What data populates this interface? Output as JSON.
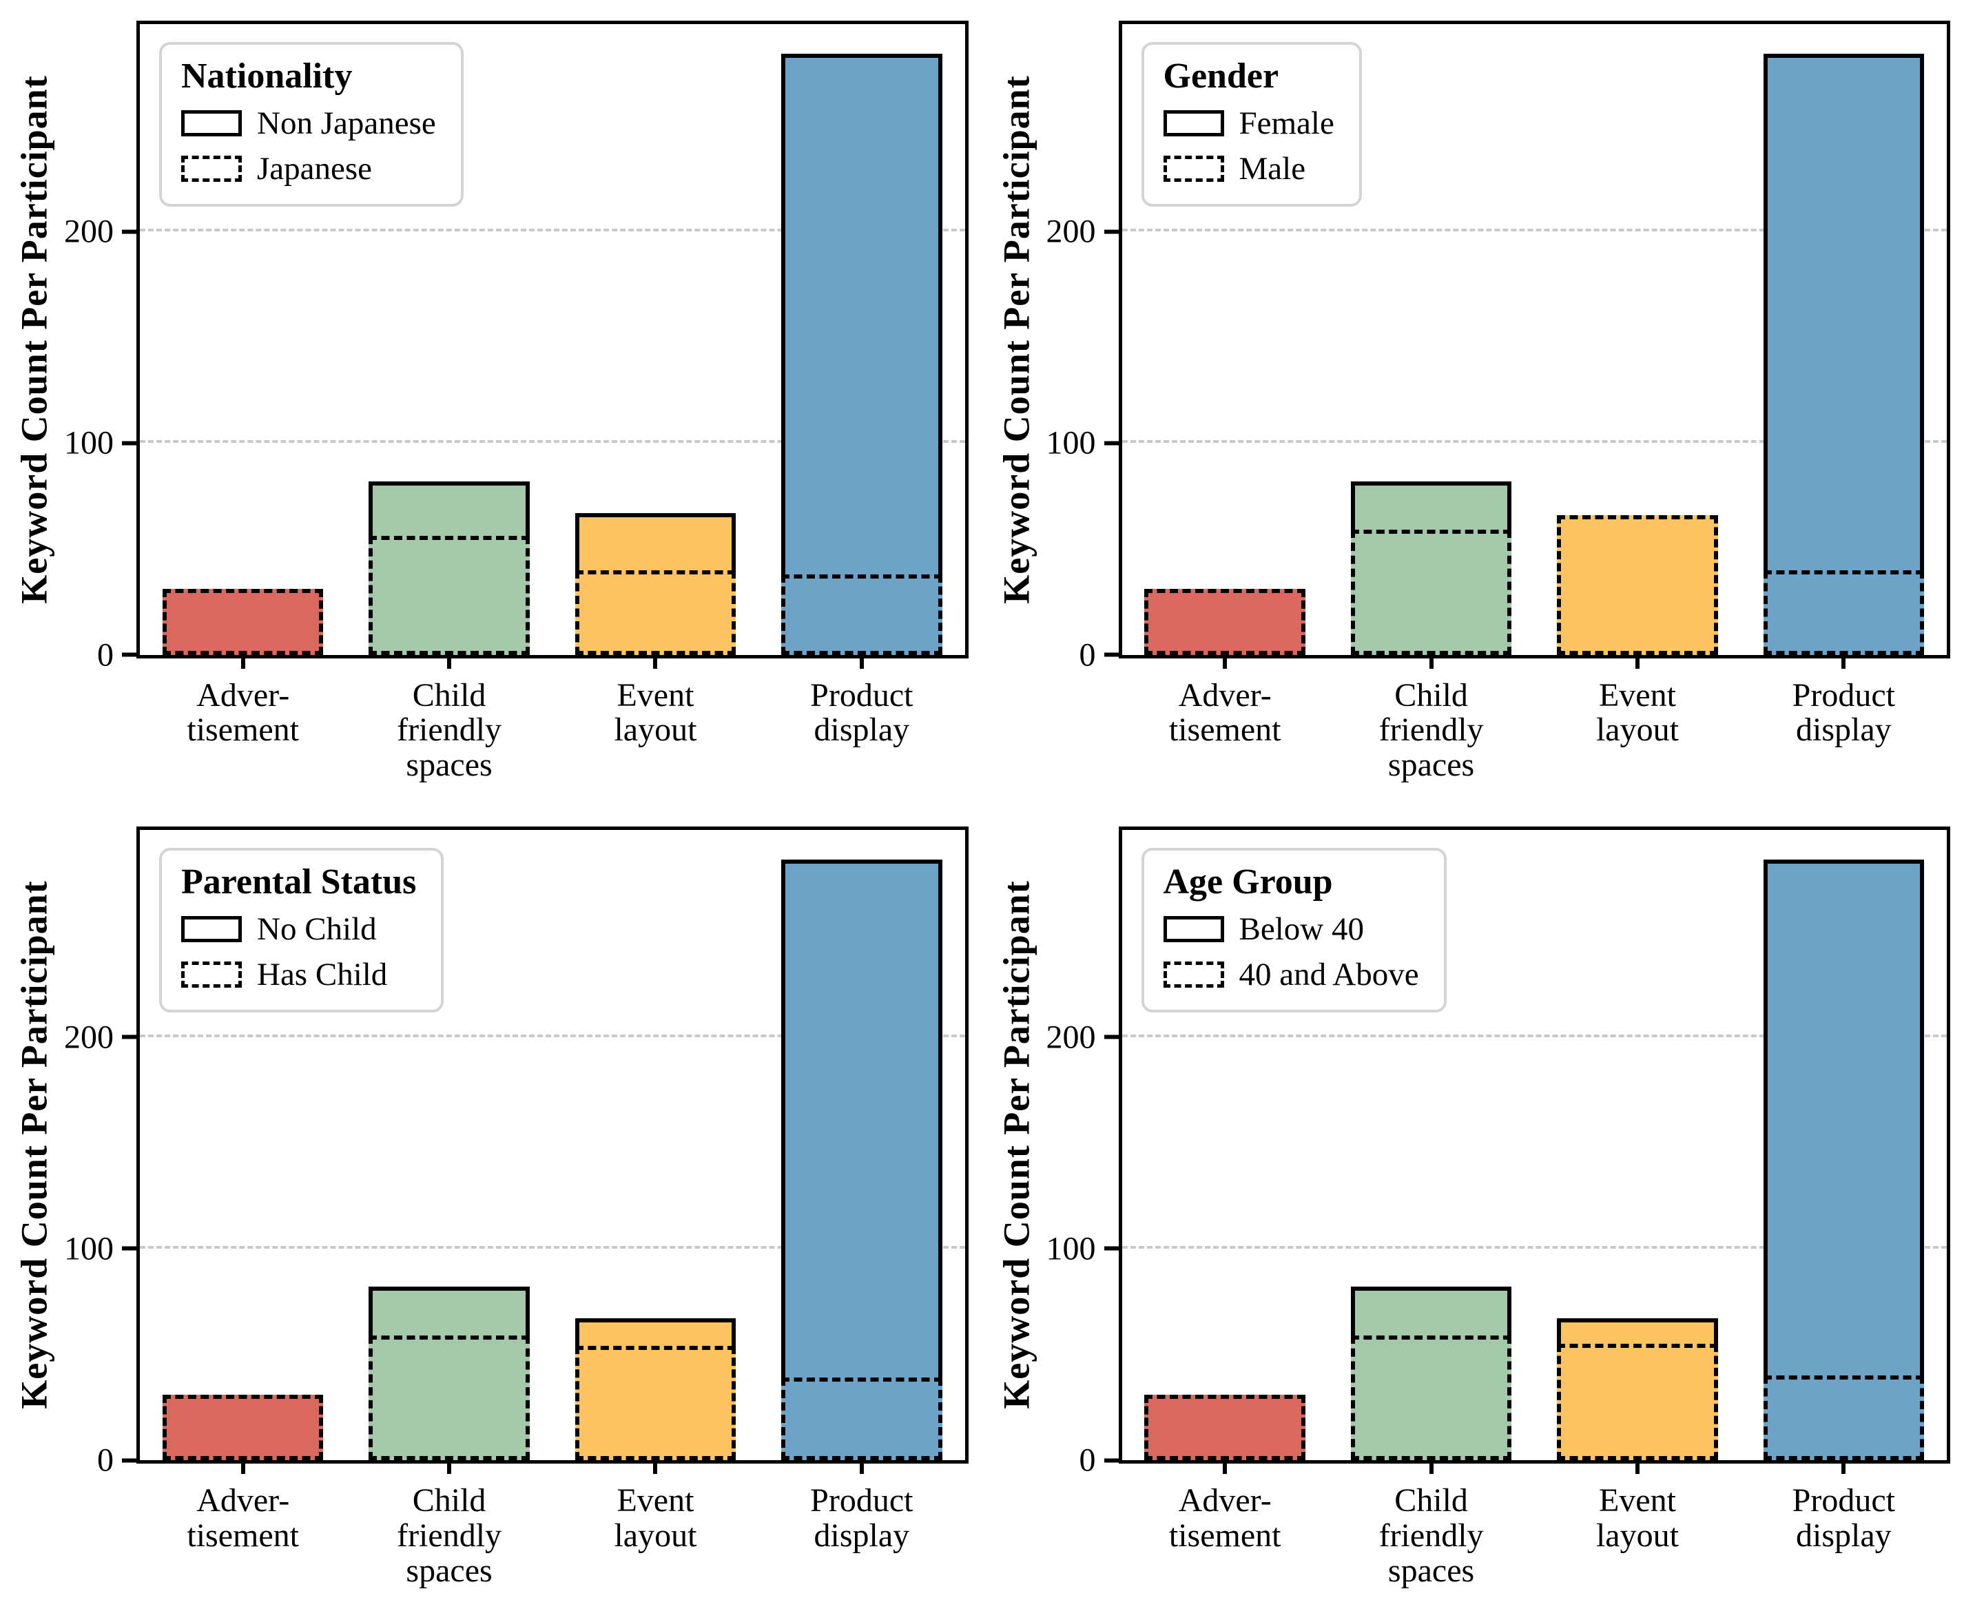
{
  "figure": {
    "ylabel": "Keyword Count Per Participant",
    "bar_colors": [
      "#D9695F",
      "#A3C9A8",
      "#FCC360",
      "#6DA3C7"
    ],
    "gridline_color": "#C9C9C9",
    "legend_border_color": "#D4D4D4",
    "edge_color": "#000000"
  },
  "chart_data": [
    {
      "type": "bar",
      "legend_title": "Nationality",
      "ylabel": "Keyword Count Per Participant",
      "categories": [
        "Adver-\ntisement",
        "Child\nfriendly\nspaces",
        "Event\nlayout",
        "Product\ndisplay"
      ],
      "series": [
        {
          "name": "Non Japanese",
          "style": "solid",
          "values": [
            30,
            82,
            67,
            284
          ]
        },
        {
          "name": "Japanese",
          "style": "dashed",
          "values": [
            31,
            56,
            40,
            38
          ]
        }
      ],
      "yticks": [
        0,
        100,
        200
      ],
      "ylim": [
        0,
        298
      ],
      "grid": true,
      "legend_position": "upper-left"
    },
    {
      "type": "bar",
      "legend_title": "Gender",
      "ylabel": "Keyword Count Per Participant",
      "categories": [
        "Adver-\ntisement",
        "Child\nfriendly\nspaces",
        "Event\nlayout",
        "Product\ndisplay"
      ],
      "series": [
        {
          "name": "Female",
          "style": "solid",
          "values": [
            30,
            82,
            64,
            284
          ]
        },
        {
          "name": "Male",
          "style": "dashed",
          "values": [
            31,
            59,
            66,
            40
          ]
        }
      ],
      "yticks": [
        0,
        100,
        200
      ],
      "ylim": [
        0,
        298
      ],
      "grid": true,
      "legend_position": "upper-left"
    },
    {
      "type": "bar",
      "legend_title": "Parental Status",
      "ylabel": "Keyword Count Per Participant",
      "categories": [
        "Adver-\ntisement",
        "Child\nfriendly\nspaces",
        "Event\nlayout",
        "Product\ndisplay"
      ],
      "series": [
        {
          "name": "No Child",
          "style": "solid",
          "values": [
            30,
            82,
            67,
            284
          ]
        },
        {
          "name": "Has Child",
          "style": "dashed",
          "values": [
            31,
            59,
            54,
            39
          ]
        }
      ],
      "yticks": [
        0,
        100,
        200
      ],
      "ylim": [
        0,
        298
      ],
      "grid": true,
      "legend_position": "upper-left"
    },
    {
      "type": "bar",
      "legend_title": "Age Group",
      "ylabel": "Keyword Count Per Participant",
      "categories": [
        "Adver-\ntisement",
        "Child\nfriendly\nspaces",
        "Event\nlayout",
        "Product\ndisplay"
      ],
      "series": [
        {
          "name": "Below 40",
          "style": "solid",
          "values": [
            30,
            82,
            67,
            284
          ]
        },
        {
          "name": "40 and Above",
          "style": "dashed",
          "values": [
            31,
            59,
            55,
            40
          ]
        }
      ],
      "yticks": [
        0,
        100,
        200
      ],
      "ylim": [
        0,
        298
      ],
      "grid": true,
      "legend_position": "upper-left"
    }
  ]
}
